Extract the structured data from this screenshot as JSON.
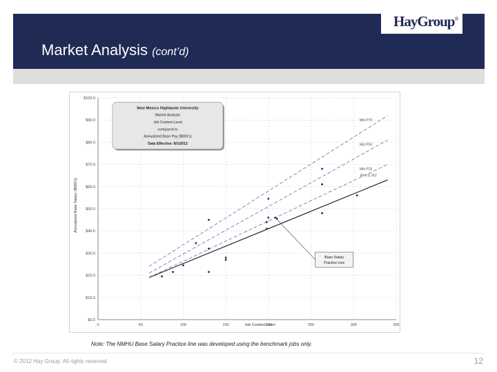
{
  "header": {
    "title": "Market Analysis",
    "subtitle": "(cont’d)",
    "logo_text": "HayGroup",
    "logo_mark": "®",
    "bg_color": "#1f2a55"
  },
  "footer": {
    "note": "Note: The NMHU Base Salary Practice line was developed using the benchmark jobs only.",
    "copyright": "© 2012 Hay Group. All rights reserved",
    "page_number": "12"
  },
  "chart_data": {
    "type": "scatter",
    "title_box": [
      "New Mexico Highlands University",
      "Market Analysis",
      "Job Content Level",
      "compared to",
      "Annualized Base Pay ($000's)",
      "Data Effective: 8/1/2012"
    ],
    "xlabel": "Job Content Level",
    "ylabel": "Annualized Base Salary ($000's)",
    "xlim": [
      0,
      350
    ],
    "ylim": [
      0,
      100
    ],
    "x_ticks": [
      "0",
      "50",
      "100",
      "150",
      "200",
      "250",
      "300",
      "350"
    ],
    "y_ticks": [
      "$0.0",
      "$10.0",
      "$20.0",
      "$30.0",
      "$40.0",
      "$50.0",
      "$60.0",
      "$70.0",
      "$80.0",
      "$90.0",
      "$100.0"
    ],
    "grid": true,
    "series": [
      {
        "name": "Mkt P75",
        "style": "dashed",
        "color": "#6e7cb6",
        "x": [
          60,
          340
        ],
        "y": [
          24,
          92
        ]
      },
      {
        "name": "Mkt P50",
        "style": "dashed",
        "color": "#6e7cb6",
        "x": [
          60,
          340
        ],
        "y": [
          21,
          81
        ]
      },
      {
        "name": "Mkt P25",
        "style": "dashed",
        "color": "#6e7cb6",
        "x": [
          60,
          340
        ],
        "y": [
          19,
          70
        ]
      },
      {
        "name": "Base Salary Practice Line",
        "style": "solid",
        "color": "#000000",
        "x": [
          60,
          340
        ],
        "y": [
          19,
          63
        ]
      }
    ],
    "r2_label": "R² = 0.767",
    "callout": "Base Salary Practice Line",
    "points": [
      [
        75,
        19.5
      ],
      [
        88,
        21.5
      ],
      [
        100,
        24.5
      ],
      [
        115,
        34.5
      ],
      [
        130,
        32
      ],
      [
        130,
        45
      ],
      [
        130,
        21.5
      ],
      [
        150,
        27
      ],
      [
        150,
        28
      ],
      [
        198,
        41
      ],
      [
        198,
        44
      ],
      [
        200,
        46
      ],
      [
        208,
        46
      ],
      [
        210,
        45.5
      ],
      [
        200,
        54.5
      ],
      [
        263,
        48
      ],
      [
        263,
        61
      ],
      [
        263,
        68
      ],
      [
        304,
        56
      ]
    ]
  }
}
